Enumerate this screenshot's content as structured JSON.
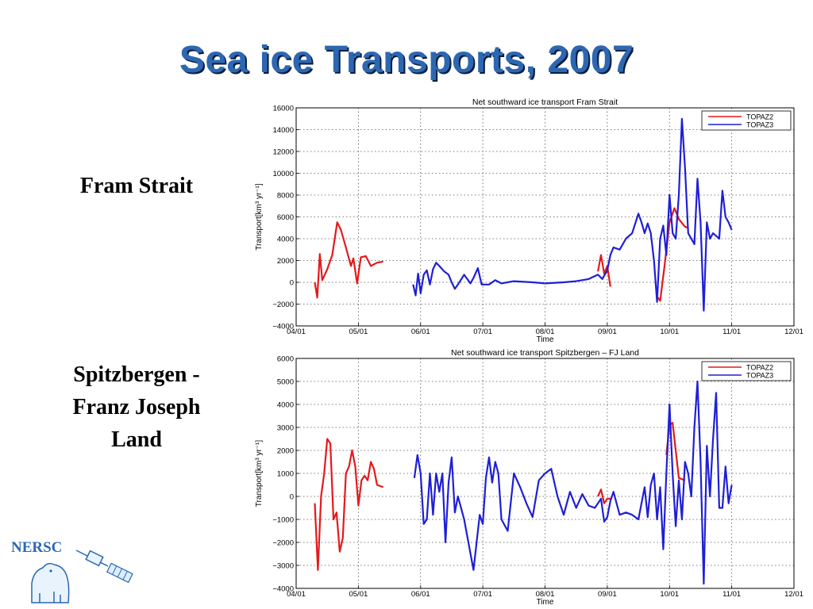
{
  "slide": {
    "title": "Sea ice Transports, 2007",
    "label_fram": "Fram Strait",
    "label_spitz_line1": "Spitzbergen -",
    "label_spitz_line2": "Franz Joseph",
    "label_spitz_line3": "Land",
    "logo_text": "NERSC"
  },
  "colors": {
    "topaz2": "#e31a1c",
    "topaz3": "#1f1fd6",
    "title": "#2d67b2"
  },
  "chart_data": [
    {
      "type": "line",
      "title": "Net southward ice transport Fram Strait",
      "xlabel": "Time",
      "ylabel": "Transport[km³ yr⁻¹]",
      "xticks": [
        "04/01",
        "05/01",
        "06/01",
        "07/01",
        "08/01",
        "09/01",
        "10/01",
        "11/01",
        "12/01"
      ],
      "ylim": [
        -4000,
        16000
      ],
      "yticks": [
        -4000,
        -2000,
        0,
        2000,
        4000,
        6000,
        8000,
        10000,
        12000,
        14000,
        16000
      ],
      "ytick_labels": [
        "−4000",
        "−2000",
        "0",
        "2000",
        "4000",
        "6000",
        "8000",
        "10000",
        "12000",
        "14000",
        "16000"
      ],
      "grid": true,
      "legend": "top-right",
      "series": [
        {
          "name": "TOPAZ2",
          "segments": [
            [
              [
                0.3,
                0
              ],
              [
                0.34,
                -1400
              ],
              [
                0.38,
                2600
              ],
              [
                0.42,
                200
              ],
              [
                0.5,
                1200
              ],
              [
                0.58,
                2500
              ],
              [
                0.66,
                5500
              ],
              [
                0.72,
                4800
              ],
              [
                0.8,
                3200
              ],
              [
                0.88,
                1500
              ],
              [
                0.92,
                2200
              ],
              [
                0.98,
                -100
              ],
              [
                1.04,
                2300
              ],
              [
                1.12,
                2400
              ],
              [
                1.2,
                1500
              ],
              [
                1.3,
                1800
              ],
              [
                1.4,
                1900
              ]
            ],
            [
              [
                4.85,
                1000
              ],
              [
                4.9,
                2500
              ],
              [
                4.95,
                800
              ],
              [
                5.0,
                1500
              ],
              [
                5.05,
                -400
              ]
            ],
            [
              [
                5.8,
                -1300
              ],
              [
                5.85,
                -1700
              ],
              [
                5.92,
                1500
              ],
              [
                6.0,
                5500
              ],
              [
                6.08,
                6800
              ],
              [
                6.15,
                5800
              ],
              [
                6.25,
                5100
              ],
              [
                6.3,
                5000
              ]
            ]
          ]
        },
        {
          "name": "TOPAZ3",
          "segments": [
            [
              [
                1.88,
                -200
              ],
              [
                1.92,
                -1200
              ],
              [
                1.96,
                800
              ],
              [
                2.0,
                -1000
              ],
              [
                2.05,
                700
              ],
              [
                2.1,
                1100
              ],
              [
                2.15,
                -200
              ],
              [
                2.2,
                1200
              ],
              [
                2.25,
                1800
              ],
              [
                2.3,
                1500
              ],
              [
                2.38,
                1000
              ],
              [
                2.45,
                700
              ],
              [
                2.5,
                0
              ],
              [
                2.55,
                -600
              ],
              [
                2.6,
                -200
              ],
              [
                2.7,
                700
              ],
              [
                2.8,
                -100
              ],
              [
                2.85,
                400
              ],
              [
                2.92,
                1300
              ],
              [
                2.98,
                -200
              ],
              [
                3.1,
                -200
              ],
              [
                3.2,
                200
              ],
              [
                3.3,
                -100
              ],
              [
                3.5,
                100
              ],
              [
                3.8,
                0
              ],
              [
                4.0,
                -100
              ],
              [
                4.3,
                0
              ],
              [
                4.5,
                100
              ],
              [
                4.7,
                300
              ],
              [
                4.85,
                700
              ],
              [
                4.92,
                300
              ],
              [
                5.0,
                1100
              ],
              [
                5.05,
                2500
              ],
              [
                5.1,
                3200
              ],
              [
                5.2,
                3000
              ],
              [
                5.3,
                4000
              ],
              [
                5.4,
                4500
              ],
              [
                5.5,
                6300
              ],
              [
                5.55,
                5500
              ],
              [
                5.6,
                4500
              ],
              [
                5.65,
                5400
              ],
              [
                5.7,
                4500
              ],
              [
                5.75,
                2000
              ],
              [
                5.8,
                -1800
              ],
              [
                5.85,
                4000
              ],
              [
                5.9,
                5200
              ],
              [
                5.95,
                2500
              ],
              [
                6.0,
                8000
              ],
              [
                6.05,
                4500
              ],
              [
                6.1,
                4000
              ],
              [
                6.15,
                8000
              ],
              [
                6.2,
                15000
              ],
              [
                6.25,
                10500
              ],
              [
                6.3,
                4500
              ],
              [
                6.35,
                4000
              ],
              [
                6.4,
                3500
              ],
              [
                6.45,
                9500
              ],
              [
                6.5,
                5500
              ],
              [
                6.55,
                -2600
              ],
              [
                6.6,
                5500
              ],
              [
                6.65,
                4000
              ],
              [
                6.7,
                4500
              ],
              [
                6.8,
                4000
              ],
              [
                6.85,
                8400
              ],
              [
                6.9,
                6000
              ],
              [
                6.95,
                5500
              ],
              [
                7.0,
                4800
              ]
            ]
          ]
        }
      ]
    },
    {
      "type": "line",
      "title": "Net southward ice transport Spitzbergen – FJ Land",
      "xlabel": "Time",
      "ylabel": "Transport[km³ yr⁻¹]",
      "xticks": [
        "04/01",
        "05/01",
        "06/01",
        "07/01",
        "08/01",
        "09/01",
        "10/01",
        "11/01",
        "12/01"
      ],
      "ylim": [
        -4000,
        6000
      ],
      "yticks": [
        -4000,
        -3000,
        -2000,
        -1000,
        0,
        1000,
        2000,
        3000,
        4000,
        5000,
        6000
      ],
      "ytick_labels": [
        "−4000",
        "−3000",
        "−2000",
        "−1000",
        "0",
        "1000",
        "2000",
        "3000",
        "4000",
        "5000",
        "6000"
      ],
      "grid": true,
      "legend": "top-right",
      "series": [
        {
          "name": "TOPAZ2",
          "segments": [
            [
              [
                0.3,
                -300
              ],
              [
                0.35,
                -3200
              ],
              [
                0.4,
                0
              ],
              [
                0.45,
                1000
              ],
              [
                0.5,
                2500
              ],
              [
                0.55,
                2300
              ],
              [
                0.6,
                -1000
              ],
              [
                0.65,
                -700
              ],
              [
                0.7,
                -2400
              ],
              [
                0.75,
                -1800
              ],
              [
                0.8,
                1000
              ],
              [
                0.85,
                1300
              ],
              [
                0.9,
                2000
              ],
              [
                0.95,
                1300
              ],
              [
                1.0,
                -400
              ],
              [
                1.05,
                700
              ],
              [
                1.1,
                900
              ],
              [
                1.15,
                700
              ],
              [
                1.2,
                1500
              ],
              [
                1.25,
                1200
              ],
              [
                1.3,
                500
              ],
              [
                1.4,
                400
              ]
            ],
            [
              [
                4.85,
                0
              ],
              [
                4.9,
                300
              ],
              [
                4.95,
                -300
              ],
              [
                5.0,
                -100
              ],
              [
                5.05,
                -100
              ]
            ],
            [
              [
                5.95,
                1800
              ],
              [
                6.0,
                3100
              ],
              [
                6.05,
                3200
              ],
              [
                6.1,
                2000
              ],
              [
                6.15,
                800
              ],
              [
                6.25,
                700
              ]
            ]
          ]
        },
        {
          "name": "TOPAZ3",
          "segments": [
            [
              [
                1.9,
                800
              ],
              [
                1.95,
                1800
              ],
              [
                2.0,
                1000
              ],
              [
                2.05,
                -1200
              ],
              [
                2.1,
                -1000
              ],
              [
                2.15,
                1000
              ],
              [
                2.2,
                -800
              ],
              [
                2.25,
                1000
              ],
              [
                2.3,
                200
              ],
              [
                2.35,
                1000
              ],
              [
                2.4,
                -2000
              ],
              [
                2.45,
                600
              ],
              [
                2.5,
                1700
              ],
              [
                2.55,
                -700
              ],
              [
                2.6,
                0
              ],
              [
                2.7,
                -1000
              ],
              [
                2.85,
                -3200
              ],
              [
                2.9,
                -2000
              ],
              [
                2.95,
                -800
              ],
              [
                3.0,
                -1200
              ],
              [
                3.05,
                800
              ],
              [
                3.1,
                1700
              ],
              [
                3.15,
                600
              ],
              [
                3.2,
                1500
              ],
              [
                3.25,
                1000
              ],
              [
                3.3,
                -1000
              ],
              [
                3.4,
                -1500
              ],
              [
                3.5,
                1000
              ],
              [
                3.6,
                400
              ],
              [
                3.7,
                -300
              ],
              [
                3.8,
                -900
              ],
              [
                3.9,
                700
              ],
              [
                4.0,
                1000
              ],
              [
                4.1,
                1200
              ],
              [
                4.2,
                0
              ],
              [
                4.3,
                -800
              ],
              [
                4.4,
                200
              ],
              [
                4.5,
                -500
              ],
              [
                4.6,
                100
              ],
              [
                4.7,
                -400
              ],
              [
                4.8,
                -500
              ],
              [
                4.85,
                -300
              ],
              [
                4.9,
                -100
              ],
              [
                4.95,
                -1100
              ],
              [
                5.0,
                -900
              ],
              [
                5.05,
                -200
              ],
              [
                5.1,
                200
              ],
              [
                5.2,
                -800
              ],
              [
                5.3,
                -700
              ],
              [
                5.4,
                -800
              ],
              [
                5.5,
                -1000
              ],
              [
                5.6,
                400
              ],
              [
                5.65,
                -900
              ],
              [
                5.7,
                500
              ],
              [
                5.75,
                1000
              ],
              [
                5.8,
                -1000
              ],
              [
                5.85,
                400
              ],
              [
                5.9,
                -2300
              ],
              [
                5.95,
                1000
              ],
              [
                6.0,
                4000
              ],
              [
                6.05,
                1000
              ],
              [
                6.1,
                -1300
              ],
              [
                6.15,
                700
              ],
              [
                6.2,
                -1000
              ],
              [
                6.25,
                1500
              ],
              [
                6.3,
                1000
              ],
              [
                6.35,
                0
              ],
              [
                6.4,
                3000
              ],
              [
                6.45,
                5000
              ],
              [
                6.5,
                1500
              ],
              [
                6.55,
                -3800
              ],
              [
                6.6,
                2200
              ],
              [
                6.65,
                0
              ],
              [
                6.7,
                2500
              ],
              [
                6.75,
                4500
              ],
              [
                6.8,
                -500
              ],
              [
                6.85,
                -500
              ],
              [
                6.9,
                1300
              ],
              [
                6.95,
                -300
              ],
              [
                7.0,
                500
              ]
            ]
          ]
        }
      ]
    }
  ]
}
